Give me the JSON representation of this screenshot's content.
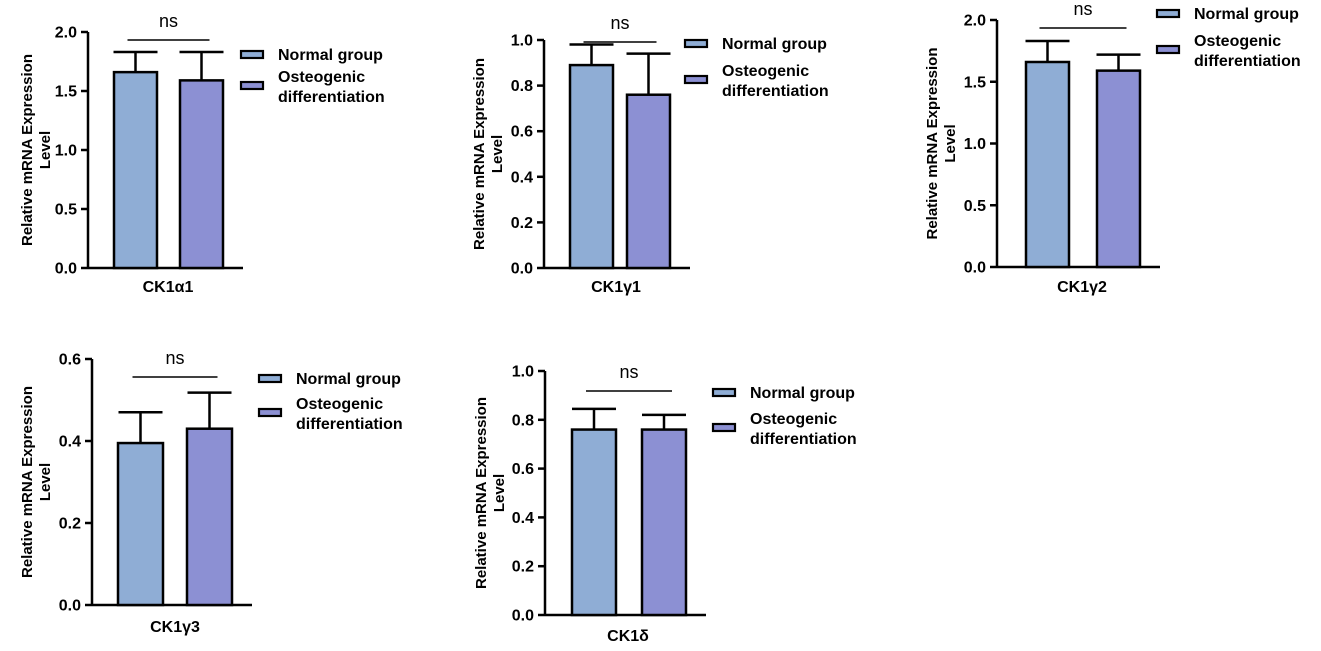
{
  "legend": {
    "normal": "Normal group",
    "osteo_line1": "Osteogenic",
    "osteo_line2": "differentiation"
  },
  "ylabel_line1": "Relative  mRNA Expression",
  "ylabel_line2": "Level",
  "colors": {
    "normal": "#8fadd5",
    "osteo": "#8c90d3",
    "stroke": "#000000"
  },
  "chart_data": [
    {
      "type": "bar",
      "category": "CK1α1",
      "series": [
        {
          "name": "Normal group",
          "value": 1.66,
          "error": 0.17
        },
        {
          "name": "Osteogenic differentiation",
          "value": 1.59,
          "error": 0.24
        }
      ],
      "significance": "ns",
      "ylim": [
        0,
        2.0
      ],
      "yticks": [
        0.0,
        0.5,
        1.0,
        1.5,
        2.0
      ],
      "ytick_labels": [
        "0.0",
        "0.5",
        "1.0",
        "1.5",
        "2.0"
      ]
    },
    {
      "type": "bar",
      "category": "CK1γ1",
      "series": [
        {
          "name": "Normal group",
          "value": 0.89,
          "error": 0.09
        },
        {
          "name": "Osteogenic differentiation",
          "value": 0.76,
          "error": 0.18
        }
      ],
      "significance": "ns",
      "ylim": [
        0,
        1.0
      ],
      "yticks": [
        0.0,
        0.2,
        0.4,
        0.6,
        0.8,
        1.0
      ],
      "ytick_labels": [
        "0.0",
        "0.2",
        "0.4",
        "0.6",
        "0.8",
        "1.0"
      ]
    },
    {
      "type": "bar",
      "category": "CK1γ2",
      "series": [
        {
          "name": "Normal group",
          "value": 1.66,
          "error": 0.17
        },
        {
          "name": "Osteogenic differentiation",
          "value": 1.59,
          "error": 0.13
        }
      ],
      "significance": "ns",
      "ylim": [
        0,
        2.0
      ],
      "yticks": [
        0.0,
        0.5,
        1.0,
        1.5,
        2.0
      ],
      "ytick_labels": [
        "0.0",
        "0.5",
        "1.0",
        "1.5",
        "2.0"
      ]
    },
    {
      "type": "bar",
      "category": "CK1γ3",
      "series": [
        {
          "name": "Normal group",
          "value": 0.395,
          "error": 0.075
        },
        {
          "name": "Osteogenic differentiation",
          "value": 0.43,
          "error": 0.088
        }
      ],
      "significance": "ns",
      "ylim": [
        0,
        0.6
      ],
      "yticks": [
        0.0,
        0.2,
        0.4,
        0.6
      ],
      "ytick_labels": [
        "0.0",
        "0.2",
        "0.4",
        "0.6"
      ]
    },
    {
      "type": "bar",
      "category": "CK1δ",
      "series": [
        {
          "name": "Normal group",
          "value": 0.76,
          "error": 0.085
        },
        {
          "name": "Osteogenic differentiation",
          "value": 0.76,
          "error": 0.06
        }
      ],
      "significance": "ns",
      "ylim": [
        0,
        1.0
      ],
      "yticks": [
        0.0,
        0.2,
        0.4,
        0.6,
        0.8,
        1.0
      ],
      "ytick_labels": [
        "0.0",
        "0.2",
        "0.4",
        "0.6",
        "0.8",
        "1.0"
      ]
    }
  ]
}
